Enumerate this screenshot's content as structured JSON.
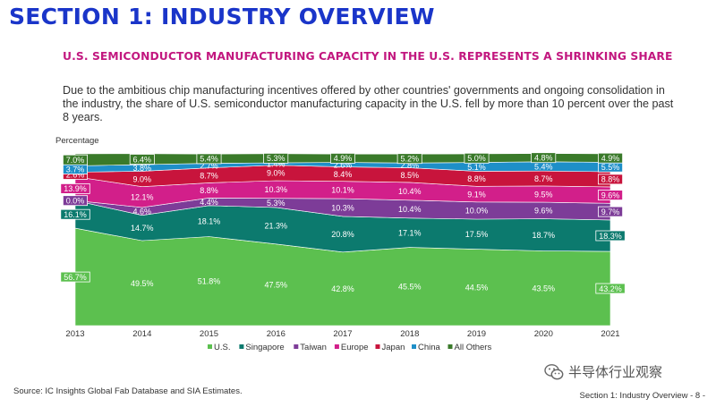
{
  "section_title": "SECTION 1: INDUSTRY OVERVIEW",
  "chart_title": "U.S. SEMICONDUCTOR MANUFACTURING CAPACITY IN THE U.S. REPRESENTS A SHRINKING SHARE",
  "description": "Due to the ambitious chip manufacturing incentives offered by other countries' governments and ongoing consolidation in the industry, the share of U.S. semiconductor manufacturing capacity in the U.S. fell by more than 10 percent over the past 8 years.",
  "source": "Source: IC Insights Global Fab Database and SIA Estimates.",
  "footer": "Section 1: Industry Overview - 8 -",
  "watermark": {
    "text": "半导体行业观察",
    "icon": "wechat-icon"
  },
  "chart_data": {
    "type": "area",
    "stacked": true,
    "ylabel": "Percentage",
    "ylim": [
      0,
      100
    ],
    "categories": [
      "2013",
      "2014",
      "2015",
      "2016",
      "2017",
      "2018",
      "2019",
      "2020",
      "2021"
    ],
    "legend_position": "bottom",
    "grid": false,
    "series": [
      {
        "name": "U.S.",
        "color": "#5cc04f",
        "values": [
          56.7,
          49.5,
          51.8,
          47.5,
          42.8,
          45.5,
          44.5,
          43.5,
          43.2
        ]
      },
      {
        "name": "Singapore",
        "color": "#0c7a6e",
        "values": [
          16.1,
          14.7,
          18.1,
          21.3,
          20.8,
          17.1,
          17.5,
          18.7,
          18.3
        ]
      },
      {
        "name": "Taiwan",
        "color": "#7d3c98",
        "values": [
          0.0,
          4.6,
          4.4,
          5.3,
          10.3,
          10.4,
          10.0,
          9.6,
          9.7
        ]
      },
      {
        "name": "Europe",
        "color": "#d21f8a",
        "values": [
          13.9,
          12.1,
          8.8,
          10.3,
          10.1,
          10.4,
          9.1,
          9.5,
          9.6
        ]
      },
      {
        "name": "Japan",
        "color": "#c8143c",
        "values": [
          2.6,
          9.0,
          8.7,
          9.0,
          8.4,
          8.5,
          8.8,
          8.7,
          8.8
        ]
      },
      {
        "name": "China",
        "color": "#1e8fc8",
        "values": [
          3.7,
          3.8,
          2.7,
          1.4,
          2.6,
          2.8,
          5.1,
          5.4,
          5.5
        ]
      },
      {
        "name": "All Others",
        "color": "#3a7a2a",
        "values": [
          7.0,
          6.4,
          5.4,
          5.3,
          4.9,
          5.2,
          5.0,
          4.8,
          4.9
        ]
      }
    ]
  }
}
